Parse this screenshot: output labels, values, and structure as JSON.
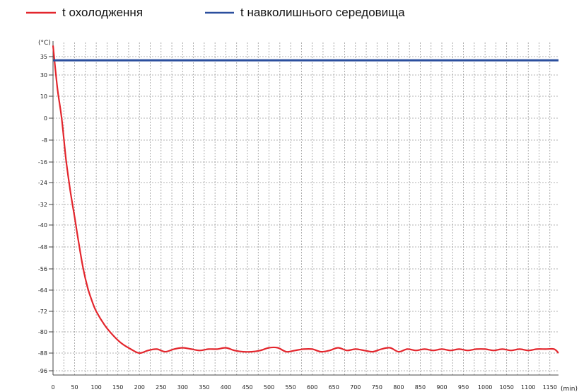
{
  "chart_data": {
    "type": "line",
    "title": "",
    "xlabel": "",
    "ylabel": "",
    "x_unit": "(min)",
    "y_unit": "(°C)",
    "xlim": [
      0,
      1170
    ],
    "ylim": [
      -100,
      37
    ],
    "grid": true,
    "legend_position": "top",
    "x_ticks": [
      0,
      50,
      100,
      150,
      200,
      250,
      300,
      350,
      400,
      450,
      500,
      550,
      600,
      650,
      700,
      750,
      800,
      850,
      900,
      950,
      1000,
      1050,
      1100,
      1150
    ],
    "y_ticks": [
      35,
      30,
      10,
      0,
      -8,
      -16,
      -24,
      -32,
      -40,
      -48,
      -56,
      -64,
      -72,
      -80,
      -88,
      -96
    ],
    "series": [
      {
        "name": "t охолодження",
        "color": "#e3262d",
        "x": [
          0,
          10,
          20,
          30,
          40,
          50,
          60,
          70,
          80,
          90,
          100,
          120,
          140,
          160,
          180,
          200,
          220,
          240,
          260,
          280,
          300,
          320,
          340,
          360,
          380,
          400,
          420,
          440,
          460,
          480,
          500,
          520,
          540,
          560,
          580,
          600,
          620,
          640,
          660,
          680,
          700,
          720,
          740,
          760,
          780,
          800,
          820,
          840,
          860,
          880,
          900,
          920,
          940,
          960,
          980,
          1000,
          1020,
          1040,
          1060,
          1080,
          1100,
          1120,
          1140,
          1160,
          1170
        ],
        "y": [
          38,
          18,
          0,
          -15,
          -27,
          -37,
          -47,
          -56,
          -63,
          -68,
          -72,
          -77.5,
          -81.5,
          -84.5,
          -86.5,
          -88,
          -87,
          -86.5,
          -87.5,
          -86.5,
          -86,
          -86.5,
          -87,
          -86.5,
          -86.5,
          -86,
          -87,
          -87.5,
          -87.5,
          -87,
          -86,
          -86,
          -87.5,
          -87,
          -86.5,
          -86.5,
          -87.5,
          -87,
          -86,
          -87,
          -86.5,
          -87,
          -87.5,
          -86.5,
          -86,
          -87.5,
          -86.5,
          -87,
          -86.5,
          -87,
          -86.5,
          -87,
          -86.5,
          -87,
          -86.5,
          -86.5,
          -87,
          -86.5,
          -87,
          -86.5,
          -87,
          -86.5,
          -86.5,
          -86.5,
          -88
        ]
      },
      {
        "name": "t навколишнього середовища",
        "color": "#2b4f9e",
        "x": [
          0,
          1170
        ],
        "y": [
          34,
          34
        ]
      }
    ]
  }
}
